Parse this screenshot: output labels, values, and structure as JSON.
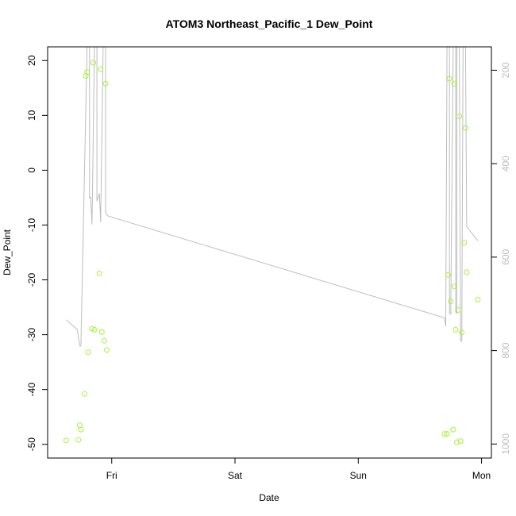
{
  "chart_data": {
    "type": "scatter",
    "title": "ATOM3 Northeast_Pacific_1 Dew_Point",
    "xlabel": "Date",
    "ylabel": "Dew_Point",
    "x_ticks": [
      "Fri",
      "Sat",
      "Sun",
      "Mon"
    ],
    "xlim": [
      -0.52,
      3.08
    ],
    "ylim": [
      -52.5,
      22.5
    ],
    "y_ticks": [
      20,
      10,
      0,
      -10,
      -20,
      -30,
      -40,
      -50
    ],
    "y2_ticks": [
      200,
      400,
      600,
      800,
      1000
    ],
    "y2lim": [
      1030,
      150
    ],
    "grid": false,
    "colors": {
      "points": "#a6f23c",
      "pressure_line": "#bdbdbd",
      "axis": "#000000"
    },
    "series": [
      {
        "type": "scatter",
        "axis": "left",
        "points": [
          [
            -0.37,
            -49.3
          ],
          [
            -0.27,
            -49.2
          ],
          [
            -0.26,
            -46.5
          ],
          [
            -0.25,
            -47.3
          ],
          [
            -0.22,
            -40.8
          ],
          [
            -0.21,
            17.2
          ],
          [
            -0.2,
            17.9
          ],
          [
            -0.19,
            -33.2
          ],
          [
            -0.16,
            -28.9
          ],
          [
            -0.15,
            19.6
          ],
          [
            -0.14,
            -29.1
          ],
          [
            -0.1,
            -18.8
          ],
          [
            -0.09,
            18.4
          ],
          [
            -0.08,
            -29.5
          ],
          [
            -0.06,
            -31.1
          ],
          [
            -0.05,
            15.8
          ],
          [
            -0.04,
            -32.8
          ],
          [
            2.7,
            -48.1
          ],
          [
            2.72,
            -48.1
          ],
          [
            2.73,
            -19.1
          ],
          [
            2.74,
            16.7
          ],
          [
            2.75,
            -23.9
          ],
          [
            2.77,
            -47.3
          ],
          [
            2.78,
            -21.2
          ],
          [
            2.78,
            15.8
          ],
          [
            2.79,
            -29.1
          ],
          [
            2.8,
            -49.6
          ],
          [
            2.81,
            -25.5
          ],
          [
            2.82,
            9.8
          ],
          [
            2.83,
            -49.4
          ],
          [
            2.84,
            -29.6
          ],
          [
            2.86,
            -13.2
          ],
          [
            2.87,
            7.7
          ],
          [
            2.88,
            -18.6
          ],
          [
            2.97,
            -23.6
          ]
        ]
      },
      {
        "type": "line",
        "axis": "right",
        "points": [
          [
            -0.37,
            734
          ],
          [
            -0.28,
            755
          ],
          [
            -0.26,
            790
          ],
          [
            -0.25,
            790
          ],
          [
            -0.2,
            150
          ],
          [
            -0.18,
            150
          ],
          [
            -0.18,
            474
          ],
          [
            -0.17,
            472
          ],
          [
            -0.16,
            530
          ],
          [
            -0.14,
            150
          ],
          [
            -0.12,
            150
          ],
          [
            -0.12,
            480
          ],
          [
            -0.1,
            464
          ],
          [
            -0.09,
            525
          ],
          [
            -0.07,
            150
          ],
          [
            -0.05,
            150
          ],
          [
            -0.05,
            505
          ],
          [
            -0.03,
            512
          ],
          [
            2.7,
            730
          ],
          [
            2.71,
            748
          ],
          [
            2.72,
            150
          ],
          [
            2.74,
            150
          ],
          [
            2.74,
            720
          ],
          [
            2.75,
            722
          ],
          [
            2.77,
            150
          ],
          [
            2.79,
            150
          ],
          [
            2.79,
            718
          ],
          [
            2.8,
            720
          ],
          [
            2.8,
            150
          ],
          [
            2.82,
            150
          ],
          [
            2.83,
            780
          ],
          [
            2.84,
            780
          ],
          [
            2.85,
            150
          ],
          [
            2.87,
            150
          ],
          [
            2.88,
            535
          ],
          [
            2.97,
            565
          ]
        ]
      }
    ]
  }
}
